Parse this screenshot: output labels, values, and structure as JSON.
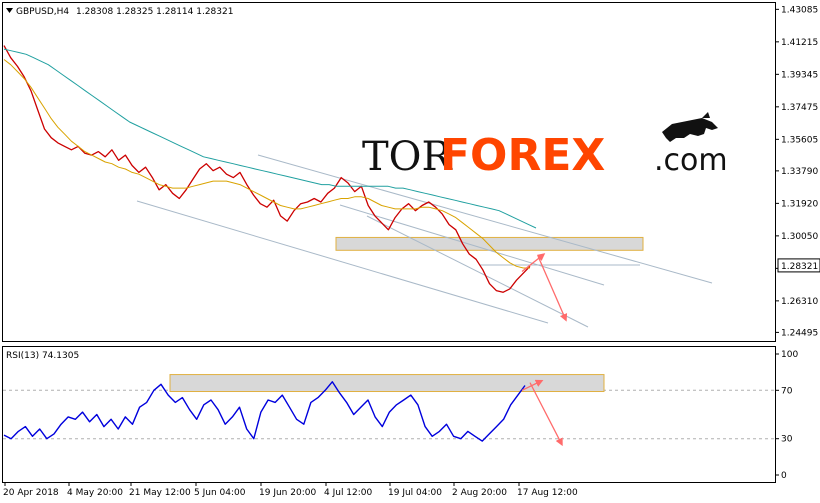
{
  "chart_data": {
    "type": "line",
    "symbol_text": "GBPUSD,H4",
    "ohlc_text": "1.28308 1.28325 1.28114 1.28321",
    "current_price": "1.28321",
    "ylim": [
      1.24,
      1.4345
    ],
    "y_ticks": [
      "1.43085",
      "1.41215",
      "1.39345",
      "1.37475",
      "1.35605",
      "1.33790",
      "1.31920",
      "1.30050",
      "1.28180",
      "1.26310",
      "1.24495"
    ],
    "x_ticks": [
      "20 Apr 2018",
      "4 May 20:00",
      "21 May 12:00",
      "5 Jun 04:00",
      "19 Jun 20:00",
      "4 Jul 12:00",
      "19 Jul 04:00",
      "2 Aug 20:00",
      "17 Aug 12:00"
    ],
    "series": [
      {
        "name": "",
        "color": "#cc0000",
        "values": [
          1.41,
          1.403,
          1.398,
          1.392,
          1.384,
          1.373,
          1.362,
          1.357,
          1.354,
          1.352,
          1.35,
          1.352,
          1.348,
          1.347,
          1.349,
          1.346,
          1.35,
          1.344,
          1.347,
          1.341,
          1.337,
          1.34,
          1.334,
          1.327,
          1.33,
          1.325,
          1.322,
          1.327,
          1.333,
          1.339,
          1.342,
          1.338,
          1.34,
          1.336,
          1.334,
          1.337,
          1.33,
          1.324,
          1.319,
          1.317,
          1.321,
          1.312,
          1.309,
          1.315,
          1.319,
          1.32,
          1.322,
          1.32,
          1.325,
          1.328,
          1.334,
          1.331,
          1.326,
          1.329,
          1.318,
          1.312,
          1.308,
          1.304,
          1.311,
          1.316,
          1.319,
          1.315,
          1.318,
          1.32,
          1.317,
          1.313,
          1.307,
          1.304,
          1.296,
          1.29,
          1.287,
          1.281,
          1.273,
          1.269,
          1.268,
          1.27,
          1.275,
          1.279,
          1.283
        ]
      },
      {
        "name": "",
        "color": "#d9a300",
        "values": [
          1.402,
          1.399,
          1.395,
          1.391,
          1.386,
          1.38,
          1.374,
          1.368,
          1.363,
          1.359,
          1.355,
          1.352,
          1.349,
          1.347,
          1.345,
          1.343,
          1.342,
          1.34,
          1.339,
          1.337,
          1.336,
          1.334,
          1.332,
          1.33,
          1.329,
          1.328,
          1.328,
          1.328,
          1.329,
          1.33,
          1.331,
          1.332,
          1.332,
          1.332,
          1.331,
          1.33,
          1.328,
          1.326,
          1.324,
          1.322,
          1.32,
          1.318,
          1.317,
          1.316,
          1.316,
          1.317,
          1.318,
          1.319,
          1.32,
          1.321,
          1.322,
          1.322,
          1.323,
          1.323,
          1.322,
          1.32,
          1.318,
          1.317,
          1.316,
          1.316,
          1.316,
          1.316,
          1.317,
          1.317,
          1.316,
          1.315,
          1.313,
          1.311,
          1.308,
          1.305,
          1.302,
          1.299,
          1.295,
          1.291,
          1.288,
          1.285,
          1.283,
          1.282,
          1.282
        ]
      },
      {
        "name": "",
        "color": "#20a0a0",
        "values": [
          1.408,
          1.407,
          1.406,
          1.405,
          1.403,
          1.401,
          1.399,
          1.396,
          1.393,
          1.39,
          1.387,
          1.384,
          1.381,
          1.378,
          1.375,
          1.372,
          1.369,
          1.366,
          1.364,
          1.362,
          1.36,
          1.358,
          1.356,
          1.354,
          1.352,
          1.35,
          1.348,
          1.346,
          1.345,
          1.344,
          1.343,
          1.342,
          1.341,
          1.34,
          1.339,
          1.338,
          1.337,
          1.336,
          1.335,
          1.334,
          1.333,
          1.332,
          1.331,
          1.33,
          1.33,
          1.329,
          1.329,
          1.329,
          1.329,
          1.329,
          1.329,
          1.329,
          1.329,
          1.328,
          1.328,
          1.327,
          1.326,
          1.325,
          1.324,
          1.323,
          1.322,
          1.321,
          1.32,
          1.319,
          1.318,
          1.317,
          1.316,
          1.315,
          1.313,
          1.311,
          1.309,
          1.307,
          1.305
        ]
      }
    ],
    "rsi": {
      "label_text": "RSI(13) 74.1305",
      "ylim": [
        0,
        100
      ],
      "y_ticks": [
        "100",
        "70",
        "30",
        "0"
      ],
      "levels": [
        70,
        30
      ],
      "color": "#0000dd",
      "values": [
        33,
        30,
        36,
        40,
        32,
        38,
        30,
        34,
        42,
        48,
        46,
        52,
        44,
        50,
        40,
        46,
        38,
        48,
        42,
        56,
        60,
        70,
        75,
        66,
        60,
        64,
        54,
        46,
        58,
        62,
        54,
        42,
        48,
        56,
        38,
        30,
        52,
        62,
        60,
        66,
        56,
        46,
        42,
        60,
        64,
        70,
        77,
        68,
        60,
        50,
        56,
        62,
        48,
        40,
        52,
        58,
        62,
        66,
        58,
        40,
        32,
        36,
        42,
        32,
        30,
        36,
        32,
        28,
        34,
        40,
        46,
        58,
        66,
        74
      ]
    },
    "annotations": {
      "zone_top": [
        1.2996,
        1.2922
      ],
      "zone_rsi": [
        83,
        69
      ],
      "arrow_up_to": 1.29,
      "arrow_down_to": 1.26,
      "rsi_arrow_up_to": 78,
      "rsi_arrow_down_to": 30
    }
  },
  "logo": {
    "part1": "TOR",
    "part2": "FOREX",
    "part3": ".com",
    "accent": "#ff4500"
  }
}
